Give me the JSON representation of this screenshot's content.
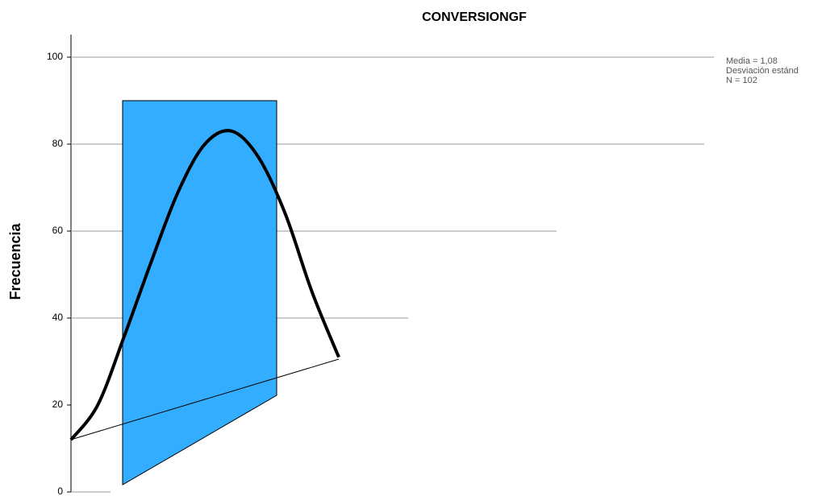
{
  "chart_data": {
    "type": "histogram",
    "title": "CONVERSIONGF",
    "ylabel": "Frecuencia",
    "values": [
      90
    ],
    "color": "#33adff",
    "curve": {
      "values": [
        12,
        20,
        36,
        53,
        69,
        80,
        83,
        77,
        64,
        46,
        31
      ],
      "color": "#000000"
    },
    "ylim": [
      0,
      105
    ],
    "yticks": [
      0,
      20,
      40,
      60,
      80,
      100
    ],
    "grid": true,
    "stats": [
      "Media = 1,08",
      "Desviación estánd",
      "N = 102"
    ]
  }
}
